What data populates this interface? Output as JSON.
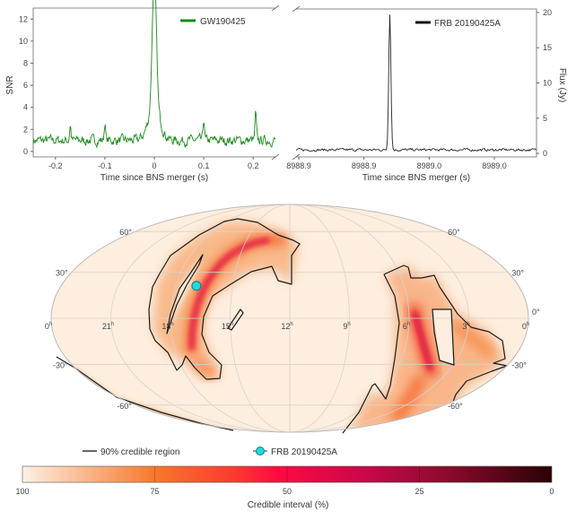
{
  "chart_data": [
    {
      "type": "line",
      "panel": "top-left",
      "legend": "GW190425",
      "xlabel": "Time since BNS merger (s)",
      "ylabel": "SNR",
      "xlim": [
        -0.245,
        0.245
      ],
      "ylim": [
        -0.5,
        13
      ],
      "xticks": [
        "-0.2",
        "-0.1",
        "0",
        "0.1",
        "0.2"
      ],
      "xtick_values": [
        -0.2,
        -0.1,
        0,
        0.1,
        0.2
      ],
      "yticks": [
        "0",
        "2",
        "4",
        "6",
        "8",
        "10",
        "12"
      ],
      "ytick_values": [
        0,
        2,
        4,
        6,
        8,
        10,
        12
      ],
      "series_color": "#1a8a1a",
      "baseline_mean": 1.0,
      "baseline_noise": 0.6,
      "peak": {
        "x": 0.0,
        "y": 12.5,
        "width": 0.004
      },
      "bumps": [
        {
          "x": -0.17,
          "y": 2.6
        },
        {
          "x": -0.1,
          "y": 2.8
        },
        {
          "x": 0.1,
          "y": 3.1
        },
        {
          "x": 0.205,
          "y": 3.6
        }
      ]
    },
    {
      "type": "line",
      "panel": "top-right",
      "legend": "FRB 20190425A",
      "xlabel": "Time since BNS merger (s)",
      "ylabel": "Flux (Jy)",
      "ylim": [
        -0.5,
        20.5
      ],
      "xticks": [
        "8988.9",
        "8988.9",
        "8989.0",
        "8989.0"
      ],
      "yticks": [
        "0",
        "5",
        "10",
        "15",
        "20"
      ],
      "ytick_values": [
        0,
        5,
        10,
        15,
        20
      ],
      "series_color": "#222222",
      "baseline_mean": 0.5,
      "baseline_noise": 0.15,
      "peak": {
        "x_fraction": 0.39,
        "y": 19.3
      }
    },
    {
      "type": "heatmap",
      "panel": "sky-map",
      "projection": "mollweide",
      "ra_labels": [
        "0h",
        "21h",
        "18h",
        "15h",
        "12h",
        "9h",
        "6h",
        "3h",
        "0h"
      ],
      "ra_hours": [
        24,
        21,
        18,
        15,
        12,
        9,
        6,
        3,
        0
      ],
      "dec_labels_left": [
        "60°",
        "30°",
        "-30°",
        "-60°"
      ],
      "dec_labels_right": [
        "60°",
        "30°",
        "0°",
        "-30°",
        "-60°"
      ],
      "legend": {
        "contour": "90% credible region",
        "marker": "FRB 20190425A"
      },
      "frb_position": {
        "ra_hours": 16.9,
        "dec_deg": 21
      },
      "colorbar": {
        "label": "Credible interval (%)",
        "ticks": [
          "100",
          "75",
          "50",
          "25",
          "0"
        ],
        "tick_values": [
          100,
          75,
          50,
          25,
          0
        ],
        "stops": [
          {
            "value": 100,
            "color": "#fdf0e4"
          },
          {
            "value": 75,
            "color": "#f7782c"
          },
          {
            "value": 60,
            "color": "#fb3a30"
          },
          {
            "value": 52,
            "color": "#ff0a42"
          },
          {
            "value": 35,
            "color": "#c8084a"
          },
          {
            "value": 20,
            "color": "#8c0a2e"
          },
          {
            "value": 0,
            "color": "#2a0204"
          }
        ]
      },
      "marker_color": "#22d8dc"
    }
  ]
}
